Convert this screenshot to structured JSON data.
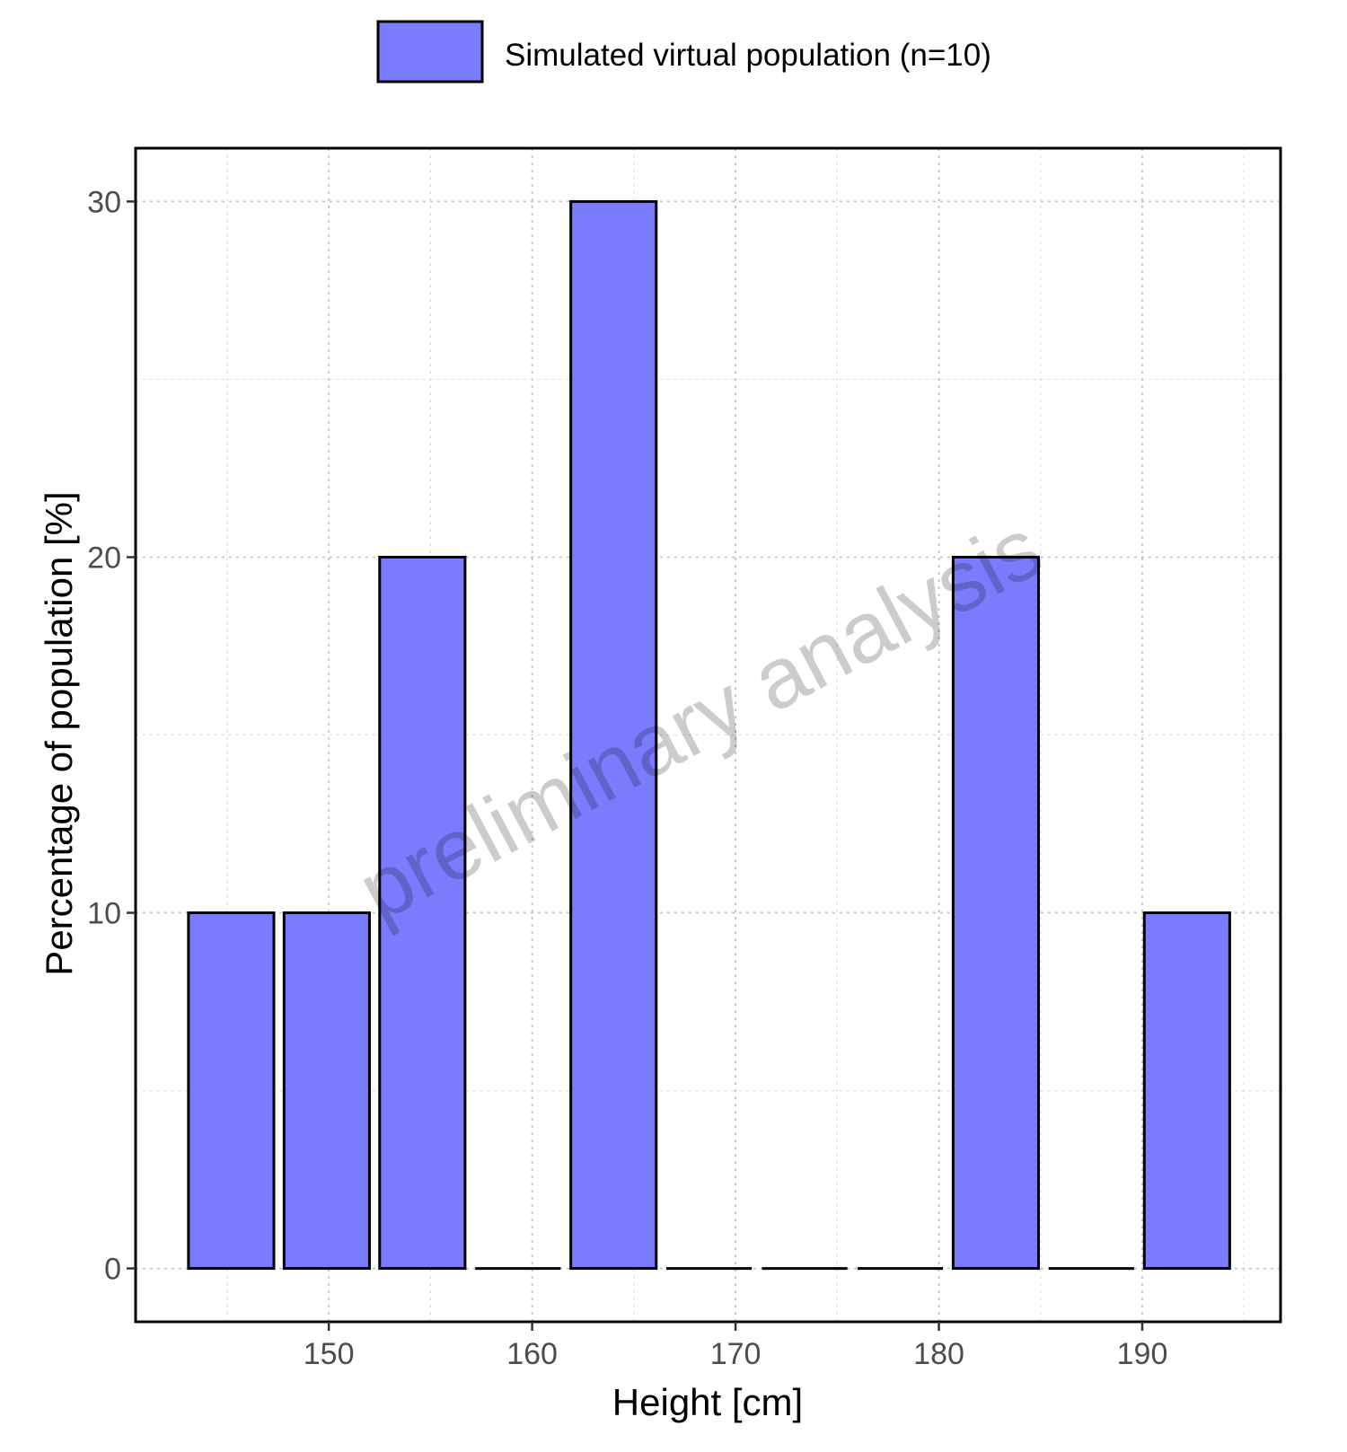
{
  "chart_data": {
    "type": "bar",
    "title": "",
    "xlabel": "Height [cm]",
    "ylabel": "Percentage of population [%]",
    "legend": {
      "position": "top",
      "entries": [
        {
          "name": "Simulated virtual population (n=10)",
          "color": "#7b7bfe"
        }
      ]
    },
    "watermark": "preliminary analysis",
    "xlim": [
      140.5,
      196.8
    ],
    "ylim": [
      -1.5,
      31.5
    ],
    "x_ticks": [
      150,
      160,
      170,
      180,
      190
    ],
    "y_ticks": [
      0,
      10,
      20,
      30
    ],
    "grid": true,
    "series": [
      {
        "name": "Simulated virtual population (n=10)",
        "color": "#7b7bfe",
        "bins": [
          {
            "from": 143.1,
            "to": 147.3,
            "value": 10
          },
          {
            "from": 147.8,
            "to": 152.0,
            "value": 10
          },
          {
            "from": 152.5,
            "to": 156.7,
            "value": 20
          },
          {
            "from": 157.2,
            "to": 161.4,
            "value": 0
          },
          {
            "from": 161.9,
            "to": 166.1,
            "value": 30
          },
          {
            "from": 166.6,
            "to": 170.8,
            "value": 0
          },
          {
            "from": 171.3,
            "to": 175.5,
            "value": 0
          },
          {
            "from": 176.0,
            "to": 180.2,
            "value": 0
          },
          {
            "from": 180.7,
            "to": 184.9,
            "value": 20
          },
          {
            "from": 185.4,
            "to": 189.6,
            "value": 0
          },
          {
            "from": 190.1,
            "to": 194.3,
            "value": 10
          }
        ]
      }
    ]
  }
}
